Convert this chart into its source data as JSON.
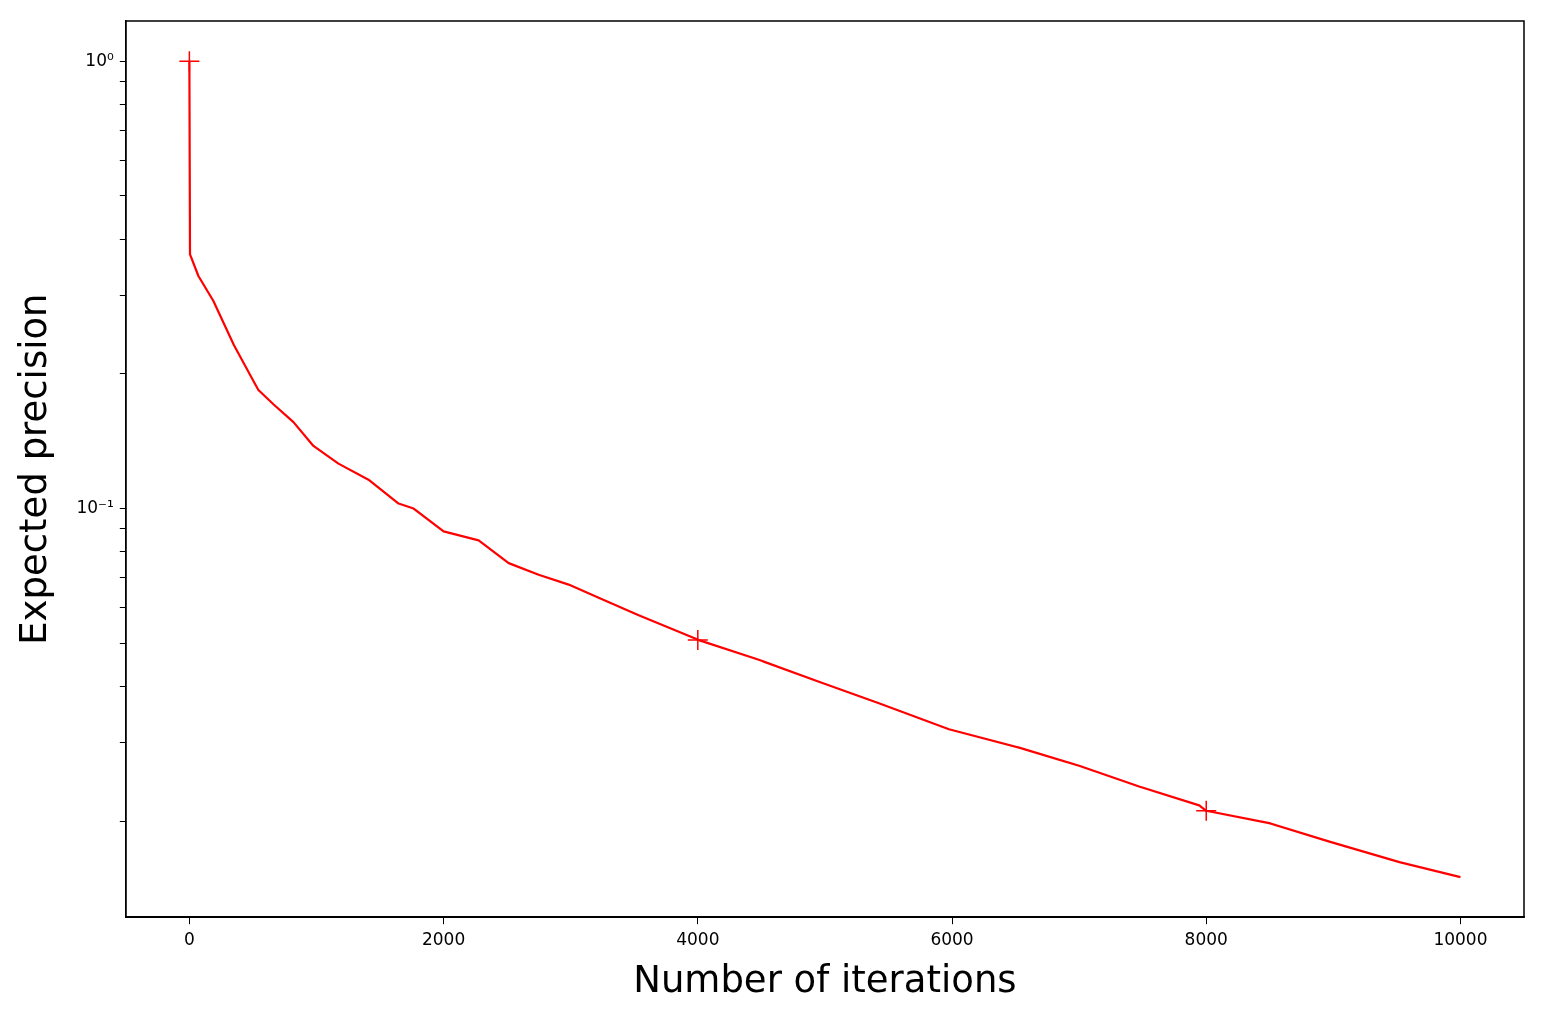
{
  "chart_data": {
    "type": "line",
    "xlabel": "Number of iterations",
    "ylabel": "Expected precision",
    "log": "y",
    "grid": false,
    "legend": false,
    "xlim": [
      -500,
      10500
    ],
    "xticks": [
      0,
      2000,
      4000,
      6000,
      8000,
      10000
    ],
    "ylim": [
      0.0122,
      1.23
    ],
    "yticks": [
      {
        "value": 0.02,
        "label": null
      },
      {
        "value": 0.03,
        "label": null
      },
      {
        "value": 0.04,
        "label": null
      },
      {
        "value": 0.05,
        "label": null
      },
      {
        "value": 0.06,
        "label": null
      },
      {
        "value": 0.07,
        "label": null
      },
      {
        "value": 0.08,
        "label": null
      },
      {
        "value": 0.09,
        "label": null
      },
      {
        "value": 0.1,
        "label": "10⁻¹"
      },
      {
        "value": 0.2,
        "label": null
      },
      {
        "value": 0.3,
        "label": null
      },
      {
        "value": 0.4,
        "label": null
      },
      {
        "value": 0.5,
        "label": null
      },
      {
        "value": 0.6,
        "label": null
      },
      {
        "value": 0.7,
        "label": null
      },
      {
        "value": 0.8,
        "label": null
      },
      {
        "value": 0.9,
        "label": null
      },
      {
        "value": 1,
        "label": "10⁰"
      }
    ],
    "series": [
      {
        "color": "#ff0000",
        "marker": "none",
        "line_style": "solid",
        "x": [
          0,
          5,
          71,
          189,
          350,
          543,
          661,
          819,
          976,
          1173,
          1409,
          1646,
          1764,
          2000,
          2276,
          2512,
          2748,
          2984,
          3220,
          3535,
          4008,
          4480,
          4953,
          5425,
          5976,
          6528,
          7000,
          7472,
          7945,
          8000,
          8496,
          8969,
          9520,
          10000
        ],
        "values": [
          1.0,
          0.37,
          0.331,
          0.291,
          0.232,
          0.184,
          0.171,
          0.156,
          0.138,
          0.126,
          0.116,
          0.1026,
          0.1,
          0.0889,
          0.0849,
          0.0755,
          0.0711,
          0.0676,
          0.0632,
          0.0577,
          0.0508,
          0.0459,
          0.041,
          0.0367,
          0.0321,
          0.0292,
          0.0266,
          0.0239,
          0.0217,
          0.0211,
          0.0198,
          0.018,
          0.0162,
          0.015
        ]
      },
      {
        "type": "scatter",
        "color": "#ff0000",
        "marker": "cross",
        "x": [
          0,
          4000,
          8000
        ],
        "values": [
          1.0,
          0.0508,
          0.0211
        ]
      }
    ]
  }
}
